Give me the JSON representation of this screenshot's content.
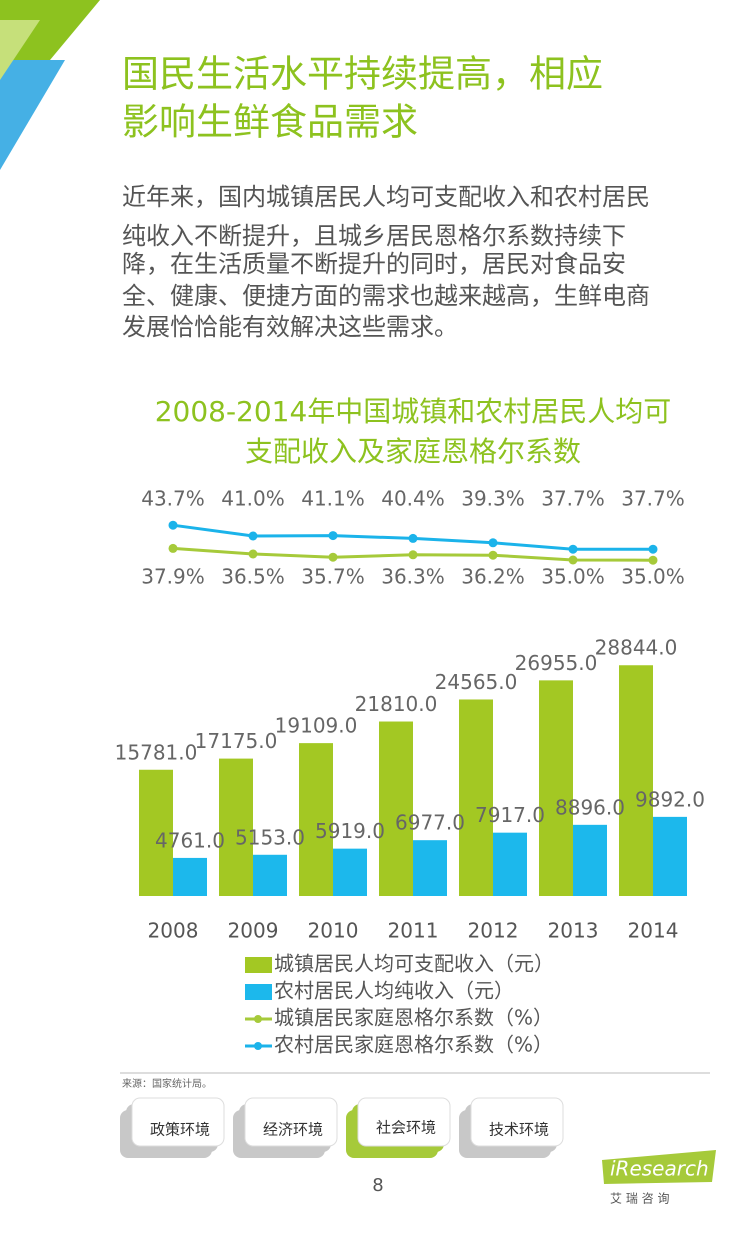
{
  "header": {
    "title_lines": [
      "国民生活水平持续提高，相应",
      "影响生鲜食品需求"
    ]
  },
  "body": {
    "lines": [
      "近年来，国内城镇居民人均可支配收入和农村居民",
      "纯收入不断提升，且城乡居民恩格尔系数持续下",
      "降，在生活质量不断提升的同时，居民对食品安",
      "全、健康、便捷方面的需求也越来越高，生鲜电商",
      "发展恰恰能有效解决这些需求。"
    ]
  },
  "chart_data": {
    "type": "bar",
    "title_lines": [
      "2008-2014年中国城镇和农村居民人均可",
      "支配收入及家庭恩格尔系数"
    ],
    "categories": [
      "2008",
      "2009",
      "2010",
      "2011",
      "2012",
      "2013",
      "2014"
    ],
    "ylim": [
      0,
      30000
    ],
    "y2lim": [
      30,
      50
    ],
    "series": [
      {
        "name": "城镇居民人均可支配收入（元）",
        "type": "bar",
        "color": "#a3c823",
        "values": [
          15781,
          17175,
          19109,
          21810,
          24565,
          26955,
          28844
        ],
        "value_labels": [
          "15781.0",
          "17175.0",
          "19109.0",
          "21810.0",
          "24565.0",
          "26955.0",
          "28844.0"
        ]
      },
      {
        "name": "农村居民人均纯收入（元）",
        "type": "bar",
        "color": "#1cb8ec",
        "values": [
          4761,
          5153,
          5919,
          6977,
          7917,
          8896,
          9892
        ],
        "value_labels": [
          "4761.0",
          "5153.0",
          "5919.0",
          "6977.0",
          "7917.0",
          "8896.0",
          "9892.0"
        ]
      },
      {
        "name": "城镇居民家庭恩格尔系数（%）",
        "type": "line",
        "axis": "y2",
        "color": "#a6ca3a",
        "values": [
          37.9,
          36.5,
          35.7,
          36.3,
          36.2,
          35.0,
          34.95
        ],
        "value_labels": [
          "37.9%",
          "36.5%",
          "35.7%",
          "36.3%",
          "36.2%",
          "35.0%",
          "35.0%"
        ]
      },
      {
        "name": "农村居民家庭恩格尔系数（%）",
        "type": "line",
        "axis": "y2",
        "color": "#1bb3ea",
        "values": [
          43.7,
          41.0,
          41.1,
          40.4,
          39.3,
          37.7,
          37.7
        ],
        "value_labels": [
          "43.7%",
          "41.0%",
          "41.1%",
          "40.4%",
          "39.3%",
          "37.7%",
          "37.7%"
        ]
      }
    ]
  },
  "source": "来源：国家统计局。",
  "tabs": [
    "政策环境",
    "经济环境",
    "社会环境",
    "技术环境"
  ],
  "page_number": "8",
  "logo": {
    "brand": "iResearch",
    "subtitle": "艾 瑞 咨 询"
  }
}
